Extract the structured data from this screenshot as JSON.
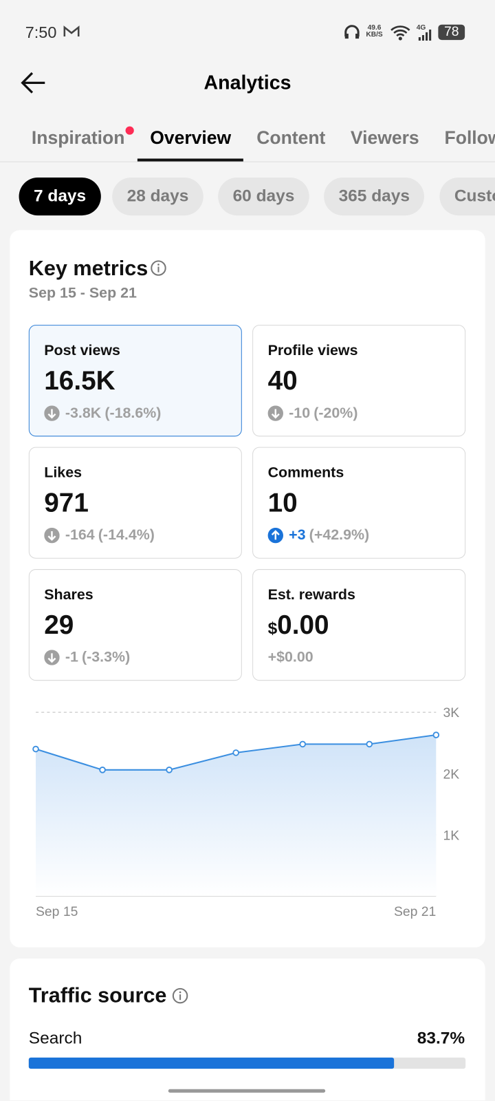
{
  "status_bar": {
    "time": "7:50",
    "net_speed": "49.6",
    "net_unit": "KB/S",
    "network": "4G",
    "battery": "78"
  },
  "header": {
    "title": "Analytics"
  },
  "tabs": {
    "items": [
      "Inspiration",
      "Overview",
      "Content",
      "Viewers",
      "Followers"
    ],
    "active": 1,
    "dot_on": 0
  },
  "periods": {
    "items": [
      "7 days",
      "28 days",
      "60 days",
      "365 days",
      "Custom"
    ],
    "active": 0
  },
  "key_metrics": {
    "title": "Key metrics",
    "date_range": "Sep 15 - Sep 21",
    "selected": 0,
    "cards": [
      {
        "label": "Post views",
        "value": "16.5K",
        "change": "-3.8K",
        "change_pct": "(-18.6%)",
        "direction": "down"
      },
      {
        "label": "Profile views",
        "value": "40",
        "change": "-10",
        "change_pct": "(-20%)",
        "direction": "down"
      },
      {
        "label": "Likes",
        "value": "971",
        "change": "-164",
        "change_pct": "(-14.4%)",
        "direction": "down"
      },
      {
        "label": "Comments",
        "value": "10",
        "change": "+3",
        "change_pct": "(+42.9%)",
        "direction": "up"
      },
      {
        "label": "Shares",
        "value": "29",
        "change": "-1",
        "change_pct": "(-3.3%)",
        "direction": "down"
      },
      {
        "label": "Est. rewards",
        "currency": "$",
        "value": "0.00",
        "change": "+$0.00"
      }
    ]
  },
  "chart_data": {
    "type": "line",
    "categories": [
      "Sep 15",
      null,
      null,
      null,
      null,
      null,
      "Sep 21"
    ],
    "values": [
      2400,
      2060,
      2060,
      2340,
      2480,
      2480,
      2630
    ],
    "color": "#3a8ee0",
    "area": true,
    "ylim": [
      0,
      3000
    ],
    "yticks": [
      {
        "value": 1000,
        "label": "1K"
      },
      {
        "value": 2000,
        "label": "2K"
      },
      {
        "value": 3000,
        "label": "3K"
      }
    ],
    "grid": "dashed"
  },
  "traffic_source": {
    "title": "Traffic source",
    "items": [
      {
        "label": "Search",
        "value": 83.7,
        "value_label": "83.7%",
        "color": "#1a73d9"
      }
    ]
  }
}
